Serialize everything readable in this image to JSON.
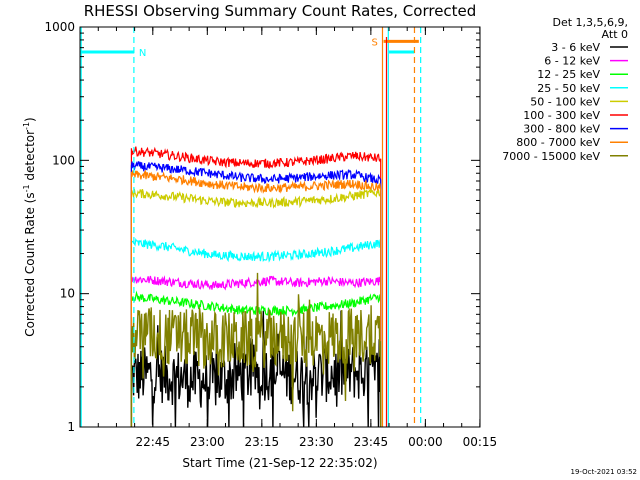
{
  "chart_data": {
    "type": "line",
    "title": "RHESSI Observing Summary Count Rates, Corrected",
    "xlabel": "Start Time (21-Sep-12 22:35:02)",
    "ylabel_main": "Corrected Count Rate (s",
    "ylabel_sup1": "-1",
    "ylabel_mid": " detector",
    "ylabel_sup2": "-1",
    "ylabel_end": ")",
    "yscale": "log",
    "ylim": [
      1,
      1000
    ],
    "xlim_minutes": [
      -10.03,
      100.03
    ],
    "x_ticks": [
      {
        "label": "22:45",
        "m": 10
      },
      {
        "label": "23:00",
        "m": 25
      },
      {
        "label": "23:15",
        "m": 40
      },
      {
        "label": "23:30",
        "m": 55
      },
      {
        "label": "23:45",
        "m": 70
      },
      {
        "label": "00:00",
        "m": 85
      },
      {
        "label": "00:15",
        "m": 100
      }
    ],
    "y_ticks": [
      {
        "label": "1",
        "v": 1
      },
      {
        "label": "10",
        "v": 10
      },
      {
        "label": "100",
        "v": 100
      },
      {
        "label": "1000",
        "v": 1000
      }
    ],
    "legend_header": [
      "Det 1,3,5,6,9,",
      "Att 0"
    ],
    "data_start_minute": 4.1,
    "data_end_minute": 72.7,
    "series": [
      {
        "name": "3 - 6 keV",
        "color": "#000000",
        "values": [
          2.4,
          2.5,
          2.3,
          2.2,
          2.5,
          2.6,
          2.4,
          2.5,
          2.6,
          2.4
        ]
      },
      {
        "name": "6 - 12 keV",
        "color": "#ff00ff",
        "values": [
          13,
          12.5,
          12,
          11.5,
          12,
          12.5,
          12,
          12.5,
          12,
          12.5
        ]
      },
      {
        "name": "12 - 25 keV",
        "color": "#00ff00",
        "values": [
          9.5,
          9,
          8.5,
          8,
          7.5,
          7.5,
          7.5,
          8,
          8.5,
          9.5
        ]
      },
      {
        "name": "25 - 50 keV",
        "color": "#00ffff",
        "values": [
          24,
          23,
          21,
          19.5,
          19,
          19,
          19.5,
          20.5,
          22,
          24
        ]
      },
      {
        "name": "50 - 100 keV",
        "color": "#cccc00",
        "values": [
          57,
          55,
          52,
          49,
          48,
          48,
          49,
          51,
          54,
          58
        ]
      },
      {
        "name": "100 - 300 keV",
        "color": "#ff0000",
        "values": [
          118,
          112,
          105,
          98,
          95,
          95,
          97,
          102,
          108,
          103
        ]
      },
      {
        "name": "300 - 800 keV",
        "color": "#0000ff",
        "values": [
          91,
          88,
          84,
          79,
          74,
          72,
          74,
          77,
          78,
          70
        ]
      },
      {
        "name": "800 - 7000 keV",
        "color": "#ff8000",
        "values": [
          78,
          75,
          71,
          66,
          63,
          62,
          63,
          65,
          67,
          62
        ]
      },
      {
        "name": "7000 - 15000 keV",
        "color": "#808000",
        "values": [
          5.0,
          4.8,
          4.6,
          4.5,
          4.5,
          4.6,
          4.6,
          4.7,
          4.8,
          5.0
        ]
      }
    ],
    "annotations": [
      {
        "label": "N",
        "color": "#00ffff",
        "segments": [
          [
            -10,
            4.9
          ],
          [
            75,
            82
          ]
        ],
        "level": 650,
        "dashed_at": [
          4.8,
          83.7
        ],
        "solid_at": [
          -9.7,
          74.8
        ]
      },
      {
        "label": "S",
        "color": "#ff8000",
        "segments": [
          [
            73.5,
            83.2
          ]
        ],
        "level": 780,
        "dashed_at": [
          82.0
        ],
        "solid_at": [
          73.2
        ]
      }
    ],
    "red_marker_minute": 74.3,
    "grid": false
  },
  "timestamp": "19-Oct-2021 03:52"
}
